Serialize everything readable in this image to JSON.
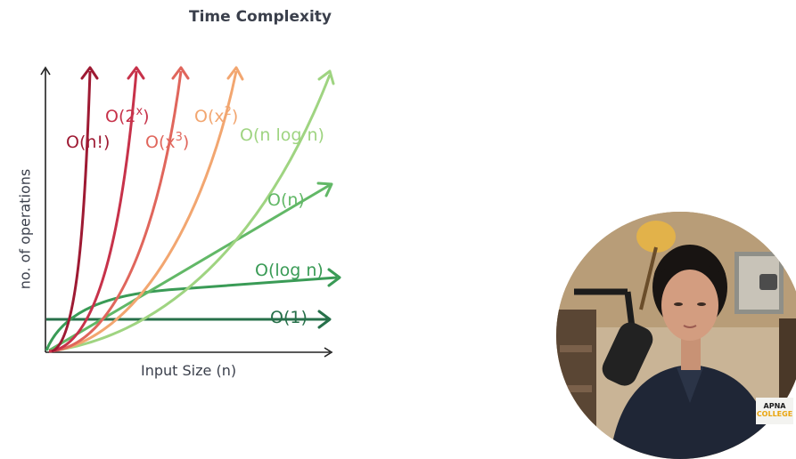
{
  "title": "Time Complexity",
  "axes": {
    "y_label": "no. of operations",
    "x_label": "Input Size (n)"
  },
  "curves": [
    {
      "id": "factorial",
      "label": "O(n!)",
      "color": "#9e1a33"
    },
    {
      "id": "exponential",
      "label_base": "O(2",
      "label_sup": "x",
      "label_end": ")",
      "color": "#c7324a"
    },
    {
      "id": "cubic",
      "label_base": "O(x",
      "label_sup": "3",
      "label_end": ")",
      "color": "#e0665c"
    },
    {
      "id": "quadratic",
      "label_base": "O(x",
      "label_sup": "2",
      "label_end": ")",
      "color": "#f2a670"
    },
    {
      "id": "nlogn",
      "label": "O(n log n)",
      "color": "#9fd481"
    },
    {
      "id": "linear",
      "label": "O(n)",
      "color": "#62b867"
    },
    {
      "id": "log",
      "label": "O(log n)",
      "color": "#3a9b56"
    },
    {
      "id": "constant",
      "label": "O(1)",
      "color": "#27704a"
    }
  ],
  "watermark": {
    "line1": "APNA",
    "line2": "COLLEGE"
  }
}
